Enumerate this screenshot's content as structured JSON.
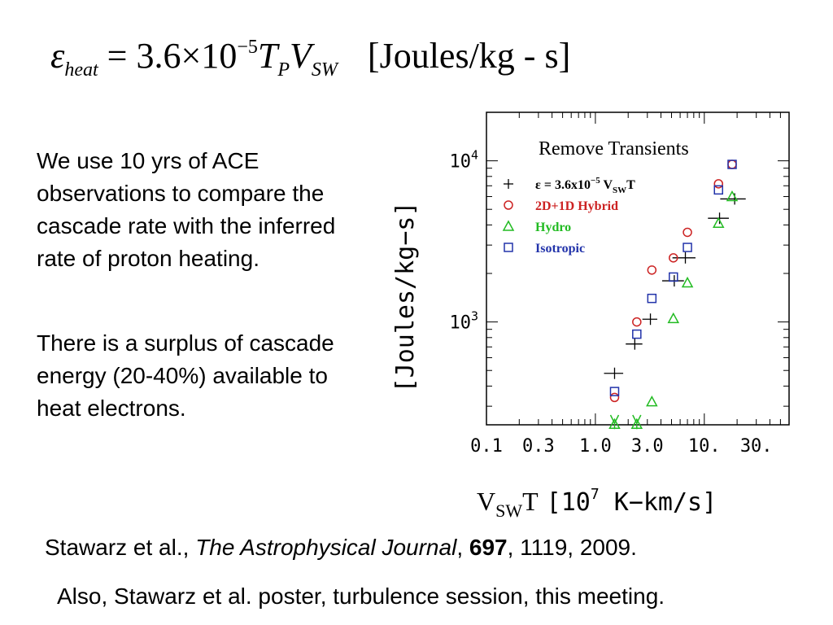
{
  "equation": {
    "epsilon": "ε",
    "epsilon_sub": "heat",
    "equals": "=",
    "coefficient": "3.6×10",
    "exponent": "−5",
    "t": "T",
    "t_sub": "P",
    "v": "V",
    "v_sub": "SW",
    "units": "[Joules/kg - s]"
  },
  "text": {
    "paragraph1": "We use 10 yrs of ACE observations to compare the cascade rate with the inferred rate of proton heating.",
    "paragraph2": "There is a surplus of cascade energy (20-40%) available to heat electrons."
  },
  "citation": {
    "authors": "Stawarz et al., ",
    "journal": "The Astrophysical Journal",
    "sep1": ", ",
    "volume": "697",
    "rest": ", 1119, 2009."
  },
  "note": "Also, Stawarz et al. poster, turbulence session, this meeting.",
  "chart_data": {
    "type": "scatter",
    "title": "Remove Transients",
    "xlabel": {
      "main": "V",
      "sub": "SW",
      "tail": "T",
      "units_open": "[10",
      "units_exp": "7",
      "units_rest": " K−km/s]"
    },
    "ylabel": "[Joules/kg−s]",
    "xscale": "log",
    "yscale": "log",
    "xlim": [
      0.1,
      60
    ],
    "ylim": [
      230,
      20000
    ],
    "x_ticks": [
      {
        "v": 0.1,
        "label": "0.1"
      },
      {
        "v": 0.3,
        "label": "0.3"
      },
      {
        "v": 1.0,
        "label": "1.0"
      },
      {
        "v": 3.0,
        "label": "3.0"
      },
      {
        "v": 10,
        "label": "10."
      },
      {
        "v": 30,
        "label": "30."
      }
    ],
    "y_ticks": [
      {
        "v": 1000,
        "label_base": "10",
        "label_exp": "3"
      },
      {
        "v": 10000,
        "label_base": "10",
        "label_exp": "4"
      }
    ],
    "legend": {
      "placement": "top-left",
      "entries": [
        {
          "symbol": "+",
          "color": "#000000",
          "label": "ε = 3.6x10",
          "exp": "−5",
          "rest": " V",
          "sub": "SW",
          "tail": "T"
        },
        {
          "symbol": "o",
          "color": "#cc2222",
          "label": "2D+1D Hybrid"
        },
        {
          "symbol": "^",
          "color": "#22bb22",
          "label": "Hydro"
        },
        {
          "symbol": "s",
          "color": "#2233aa",
          "label": "Isotropic"
        }
      ]
    },
    "series": [
      {
        "name": "ε = 3.6x10−5 VSWT",
        "marker": "hbar",
        "color": "#000000",
        "x": [
          1.5,
          2.3,
          3.2,
          5.3,
          6.7,
          13.8,
          19.0
        ],
        "y": [
          480,
          730,
          1040,
          1800,
          2500,
          4400,
          5800
        ],
        "xerr": [
          0.3,
          0.4,
          0.5,
          1.2,
          1.6,
          3.0,
          5.0
        ]
      },
      {
        "name": "2D+1D Hybrid",
        "marker": "o",
        "color": "#cc2222",
        "x": [
          1.5,
          2.4,
          3.3,
          5.2,
          7.0,
          13.5,
          18.0
        ],
        "y": [
          340,
          1000,
          2100,
          2500,
          3600,
          7200,
          9500
        ]
      },
      {
        "name": "Hydro",
        "marker": "^",
        "color": "#22bb22",
        "x": [
          1.5,
          2.4,
          3.3,
          5.2,
          7.0,
          13.5,
          18.0
        ],
        "y": [
          232,
          232,
          320,
          1050,
          1750,
          4100,
          6000
        ],
        "arrows": [
          true,
          true,
          false,
          false,
          false,
          false,
          false
        ]
      },
      {
        "name": "Isotropic",
        "marker": "s",
        "color": "#2233aa",
        "x": [
          1.5,
          2.4,
          3.3,
          5.2,
          7.0,
          13.5,
          18.0
        ],
        "y": [
          370,
          840,
          1400,
          1900,
          2900,
          6600,
          9500
        ]
      }
    ]
  }
}
